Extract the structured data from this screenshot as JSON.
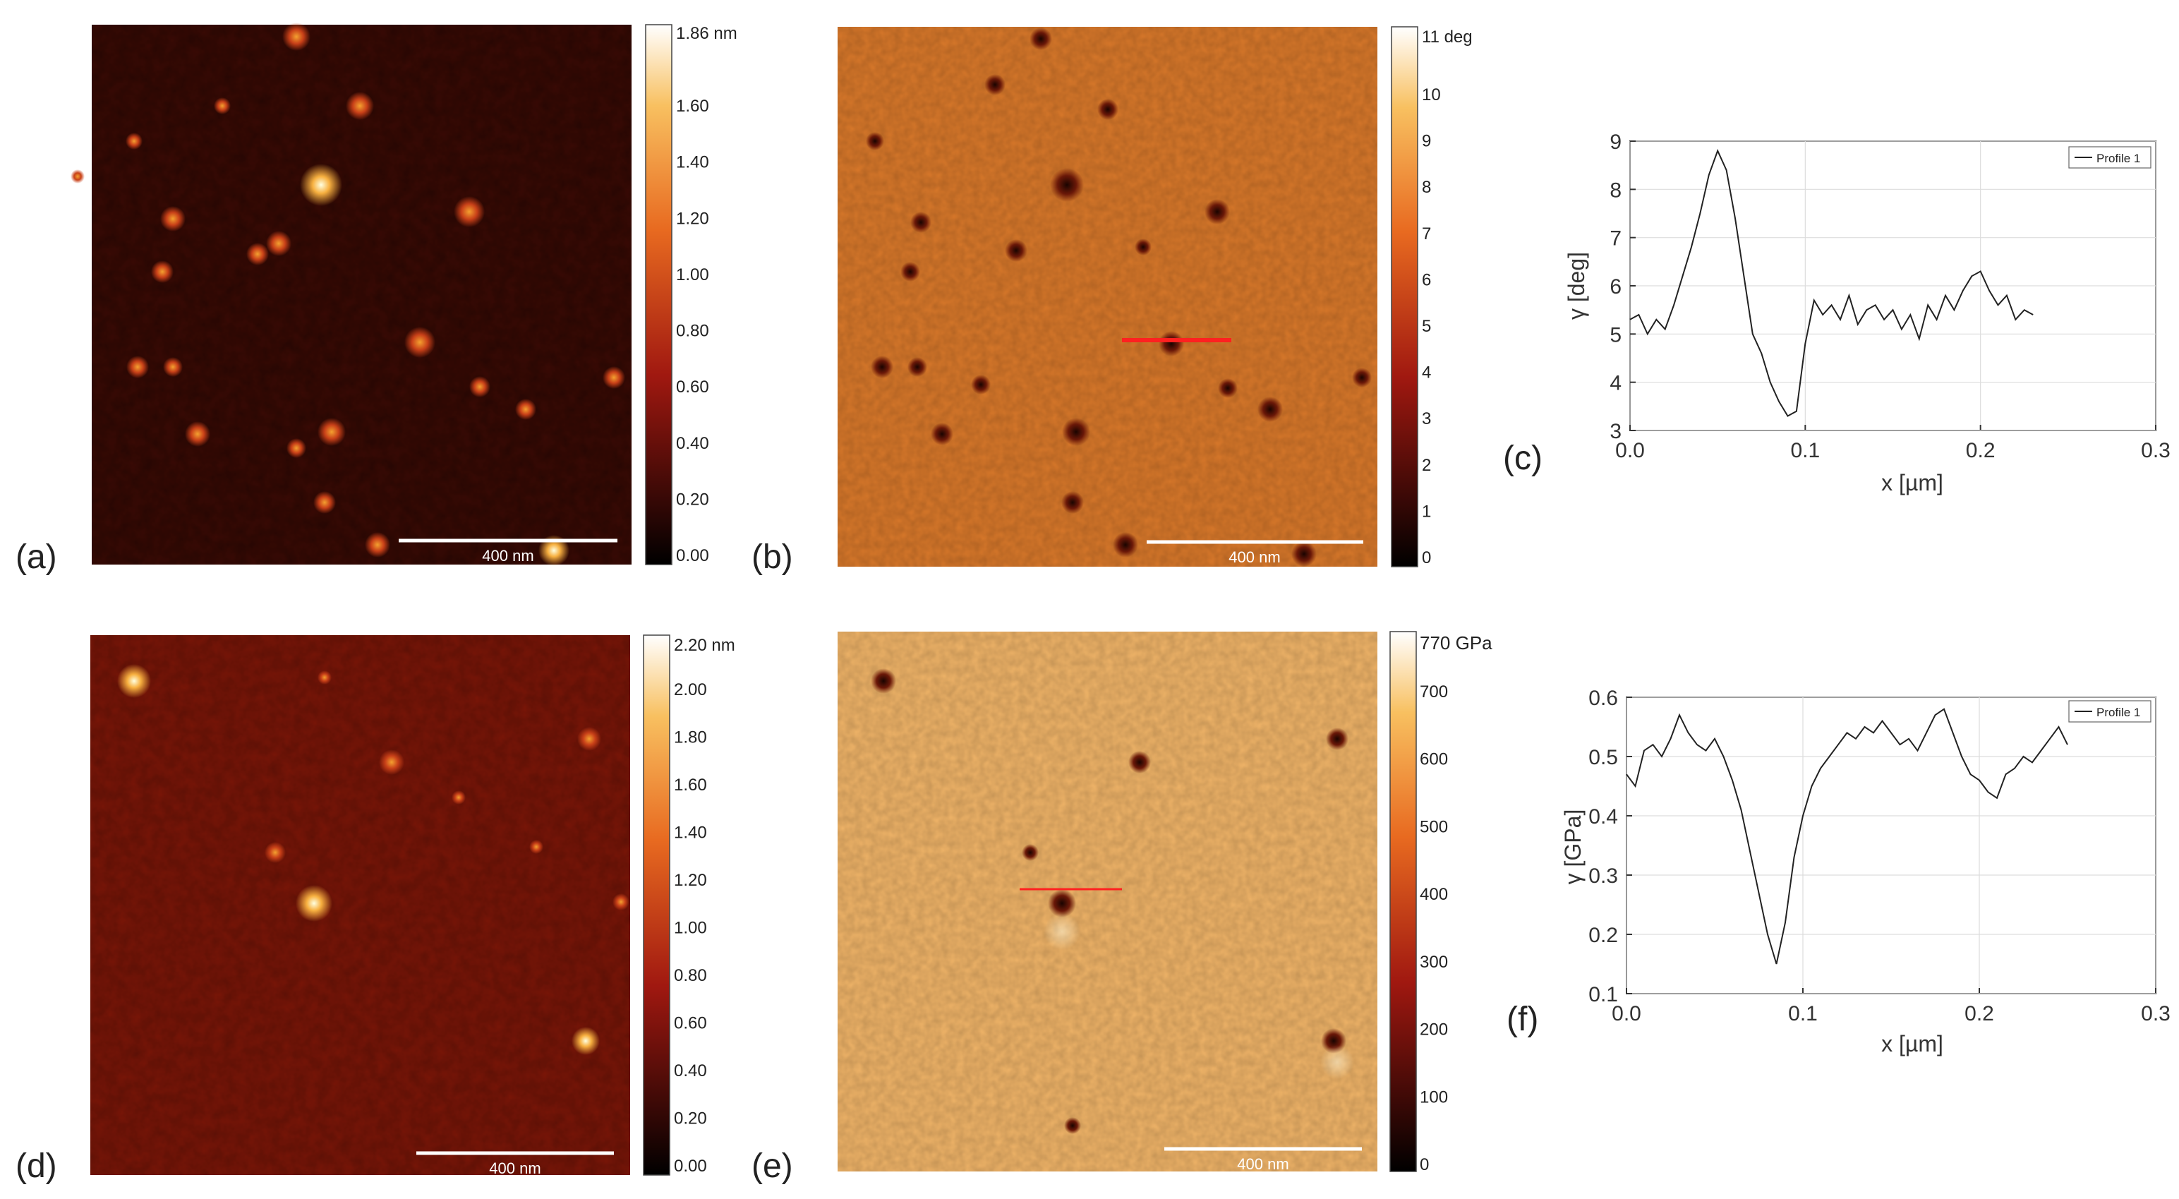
{
  "panel_labels": [
    "(a)",
    "(b)",
    "(c)",
    "(d)",
    "(e)",
    "(f)"
  ],
  "colors": {
    "hot_dark": "#000000",
    "hot_mid": "#c02018",
    "hot_orange": "#f0a030",
    "hot_light": "#ffffff",
    "profile_line": "#ff2020",
    "trace": "#222222",
    "grid": "#dddddd"
  },
  "maps": [
    {
      "id": "a",
      "scale_bar_label": "400 nm",
      "background": "#3a0a04",
      "colorbar": {
        "top_label": "1.86 nm",
        "ticks": [
          "1.60",
          "1.40",
          "1.20",
          "1.00",
          "0.80",
          "0.60",
          "0.40",
          "0.20",
          "0.00"
        ]
      }
    },
    {
      "id": "b",
      "scale_bar_label": "400 nm",
      "background": "#d8782a",
      "colorbar": {
        "top_label": "11 deg",
        "ticks": [
          "10",
          "9",
          "8",
          "7",
          "6",
          "5",
          "4",
          "3",
          "2",
          "1",
          "0"
        ]
      }
    },
    {
      "id": "d",
      "scale_bar_label": "400 nm",
      "background": "#7a1608",
      "colorbar": {
        "top_label": "2.20 nm",
        "ticks": [
          "2.00",
          "1.80",
          "1.60",
          "1.40",
          "1.20",
          "1.00",
          "0.80",
          "0.60",
          "0.40",
          "0.20",
          "0.00"
        ]
      }
    },
    {
      "id": "e",
      "scale_bar_label": "400 nm",
      "background": "#f0b468",
      "colorbar": {
        "top_label": "770 GPa",
        "ticks": [
          "700",
          "600",
          "500",
          "400",
          "300",
          "200",
          "100",
          "0"
        ]
      }
    }
  ],
  "chart_data": [
    {
      "type": "line",
      "panel": "(c)",
      "xlabel": "x [µm]",
      "ylabel": "γ [deg]",
      "xlim": [
        0.0,
        0.3
      ],
      "ylim": [
        3,
        9
      ],
      "xticks": [
        "0.0",
        "0.1",
        "0.2",
        "0.3"
      ],
      "yticks": [
        "3",
        "4",
        "5",
        "6",
        "7",
        "8",
        "9"
      ],
      "legend": "top-right",
      "grid": true,
      "series": [
        {
          "name": "Profile 1",
          "x": [
            0.0,
            0.005,
            0.01,
            0.015,
            0.02,
            0.025,
            0.03,
            0.035,
            0.04,
            0.045,
            0.05,
            0.055,
            0.06,
            0.065,
            0.07,
            0.075,
            0.08,
            0.085,
            0.09,
            0.095,
            0.1,
            0.105,
            0.11,
            0.115,
            0.12,
            0.125,
            0.13,
            0.135,
            0.14,
            0.145,
            0.15,
            0.155,
            0.16,
            0.165,
            0.17,
            0.175,
            0.18,
            0.185,
            0.19,
            0.195,
            0.2,
            0.205,
            0.21,
            0.215,
            0.22,
            0.225,
            0.23
          ],
          "y": [
            5.3,
            5.4,
            5.0,
            5.3,
            5.1,
            5.6,
            6.2,
            6.8,
            7.5,
            8.3,
            8.8,
            8.4,
            7.4,
            6.2,
            5.0,
            4.6,
            4.0,
            3.6,
            3.3,
            3.4,
            4.8,
            5.7,
            5.4,
            5.6,
            5.3,
            5.8,
            5.2,
            5.5,
            5.6,
            5.3,
            5.5,
            5.1,
            5.4,
            4.9,
            5.6,
            5.3,
            5.8,
            5.5,
            5.9,
            6.2,
            6.3,
            5.9,
            5.6,
            5.8,
            5.3,
            5.5,
            5.4
          ]
        }
      ]
    },
    {
      "type": "line",
      "panel": "(f)",
      "xlabel": "x [µm]",
      "ylabel": "γ [GPa]",
      "xlim": [
        0.0,
        0.3
      ],
      "ylim": [
        0.1,
        0.6
      ],
      "xticks": [
        "0.0",
        "0.1",
        "0.2",
        "0.3"
      ],
      "yticks": [
        "0.1",
        "0.2",
        "0.3",
        "0.4",
        "0.5",
        "0.6"
      ],
      "legend": "top-right",
      "grid": true,
      "series": [
        {
          "name": "Profile 1",
          "x": [
            0.0,
            0.005,
            0.01,
            0.015,
            0.02,
            0.025,
            0.03,
            0.035,
            0.04,
            0.045,
            0.05,
            0.055,
            0.06,
            0.065,
            0.07,
            0.075,
            0.08,
            0.085,
            0.09,
            0.095,
            0.1,
            0.105,
            0.11,
            0.115,
            0.12,
            0.125,
            0.13,
            0.135,
            0.14,
            0.145,
            0.15,
            0.155,
            0.16,
            0.165,
            0.17,
            0.175,
            0.18,
            0.185,
            0.19,
            0.195,
            0.2,
            0.205,
            0.21,
            0.215,
            0.22,
            0.225,
            0.23,
            0.235,
            0.24,
            0.245,
            0.25
          ],
          "y": [
            0.47,
            0.45,
            0.51,
            0.52,
            0.5,
            0.53,
            0.57,
            0.54,
            0.52,
            0.51,
            0.53,
            0.5,
            0.46,
            0.41,
            0.34,
            0.27,
            0.2,
            0.15,
            0.22,
            0.33,
            0.4,
            0.45,
            0.48,
            0.5,
            0.52,
            0.54,
            0.53,
            0.55,
            0.54,
            0.56,
            0.54,
            0.52,
            0.53,
            0.51,
            0.54,
            0.57,
            0.58,
            0.54,
            0.5,
            0.47,
            0.46,
            0.44,
            0.43,
            0.47,
            0.48,
            0.5,
            0.49,
            0.51,
            0.53,
            0.55,
            0.52
          ]
        }
      ]
    }
  ]
}
